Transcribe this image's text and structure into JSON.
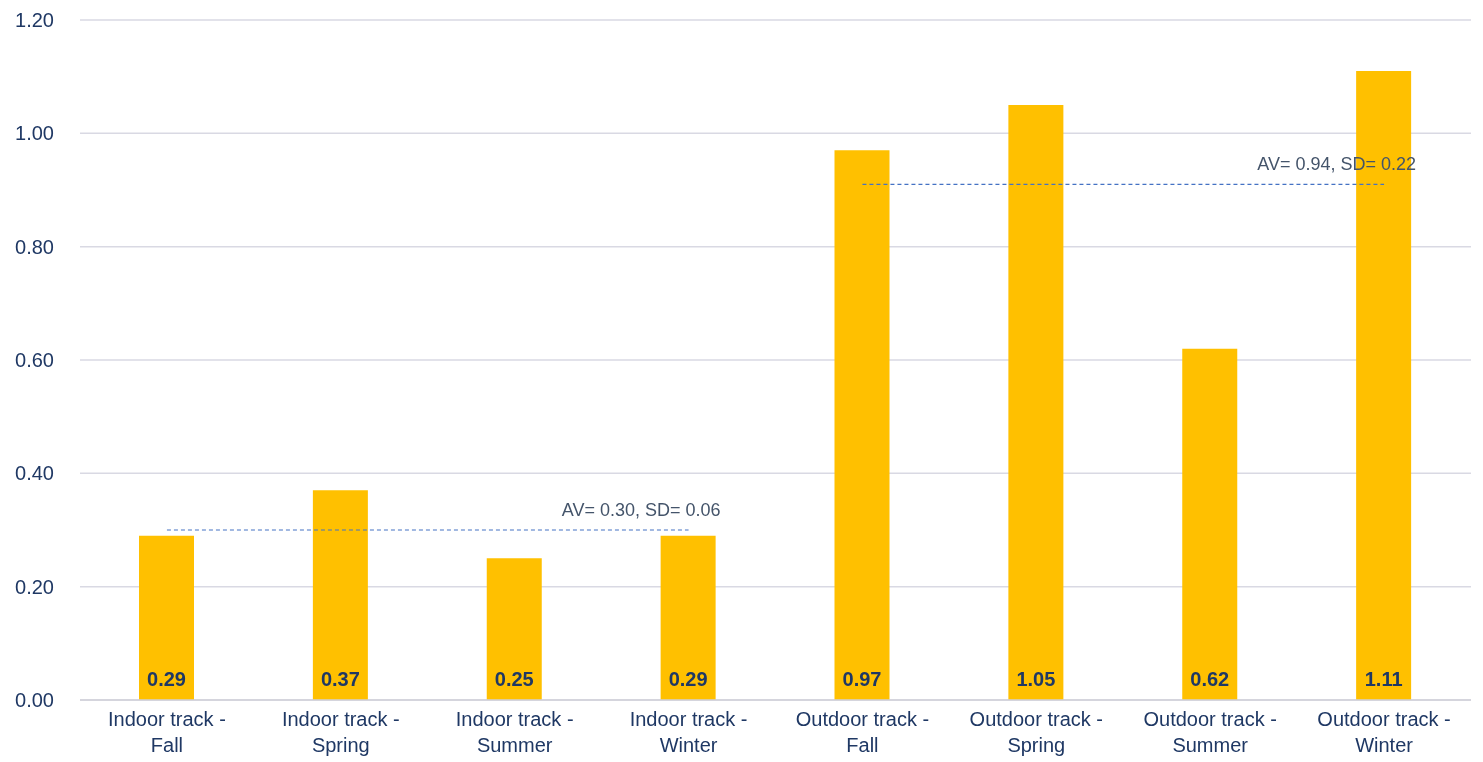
{
  "chart_data": {
    "type": "bar",
    "categories": [
      "Indoor track - Fall",
      "Indoor track - Spring",
      "Indoor track - Summer",
      "Indoor track - Winter",
      "Outdoor track - Fall",
      "Outdoor track - Spring",
      "Outdoor track - Summer",
      "Outdoor track - Winter"
    ],
    "series": [
      {
        "color": "#ffc000",
        "values": [
          0.29,
          0.37,
          0.25,
          0.29,
          0.97,
          1.05,
          0.62,
          1.11
        ],
        "value_labels": [
          "0.29",
          "0.37",
          "0.25",
          "0.29",
          "0.97",
          "1.05",
          "0.62",
          "1.11"
        ]
      },
      {
        "type": "line",
        "color": "#4472c4",
        "line_style": "dashed",
        "marker": "none",
        "values": [
          0.3,
          0.3,
          0.3,
          0.3,
          null,
          null,
          null,
          null
        ]
      },
      {
        "type": "line",
        "color": "#4472c4",
        "line_style": "dashed",
        "marker": "none",
        "values": [
          null,
          null,
          null,
          null,
          0.91,
          0.91,
          0.91,
          0.91
        ]
      }
    ],
    "ylim": [
      0,
      1.2
    ],
    "yticks": [
      {
        "value": 0,
        "label": "0.00"
      },
      {
        "value": 0.2,
        "label": "0.20"
      },
      {
        "value": 0.4,
        "label": "0.40"
      },
      {
        "value": 0.6,
        "label": "0.60"
      },
      {
        "value": 0.8,
        "label": "0.80"
      },
      {
        "value": 1,
        "label": "1.00"
      },
      {
        "value": 1.2,
        "label": "1.20"
      }
    ],
    "grid": "y",
    "annotations": [
      {
        "text": "AV= 0.30, SD= 0.06",
        "x": "Indoor track - Winter",
        "y": 0.3
      },
      {
        "text": "AV= 0.94, SD= 0.22",
        "x": "Outdoor track - Winter",
        "y": 0.91
      }
    ]
  }
}
